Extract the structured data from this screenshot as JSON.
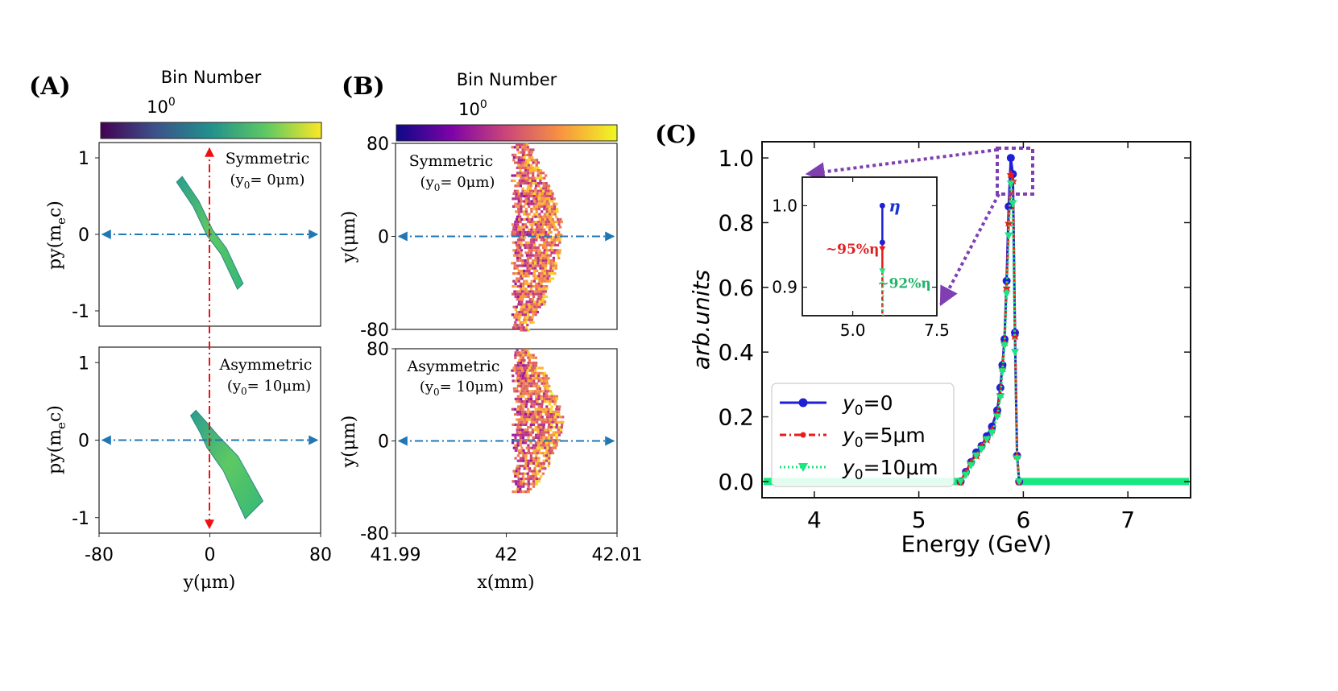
{
  "panel_labels": {
    "a": "(A)",
    "b": "(B)",
    "c": "(C)"
  },
  "colors": {
    "blue_series": "#1f1fd6",
    "red_series": "#e81c1c",
    "green_series": "#17e87f",
    "inset_annot_blue": "#1a33d9",
    "inset_annot_red": "#e02020",
    "inset_annot_green": "#22b36b",
    "zoom_box": "#7f3fb1",
    "axis_arrow_blue": "#1f77b4",
    "axis_arrow_red": "#ee1111"
  },
  "chart_data": [
    {
      "id": "A",
      "type": "heatmap",
      "colormap": "viridis",
      "colorbar": {
        "title": "Bin Number",
        "tick_base": "10",
        "tick_exp": "0"
      },
      "xlabel": "y(μm)",
      "ylabel_main": "py(m",
      "ylabel_sub": "e",
      "ylabel_end": "c)",
      "xlim": [
        -80,
        80
      ],
      "ylim": [
        -1.2,
        1.2
      ],
      "xticks": [
        "-80",
        "0",
        "80"
      ],
      "yticks": [
        "1",
        "0",
        "-1"
      ],
      "subplots": [
        {
          "name": "Symmetric",
          "label_line1": "Symmetric",
          "label_line2": "(y",
          "label_sub": "0",
          "label_end": "= 0μm)",
          "ribbon": [
            [
              -22,
              0.72
            ],
            [
              -10,
              0.4
            ],
            [
              0,
              0.02
            ],
            [
              10,
              -0.22
            ],
            [
              22,
              -0.68
            ]
          ],
          "ribbon_width": 3.5
        },
        {
          "name": "Asymmetric",
          "label_line1": "Asymmetric",
          "label_line2": "(y",
          "label_sub": "0",
          "label_end": "= 10μm)",
          "ribbon": [
            [
              -12,
              0.35
            ],
            [
              -4,
              0.15
            ],
            [
              2,
              -0.02
            ],
            [
              15,
              -0.3
            ],
            [
              32,
              -0.9
            ]
          ],
          "ribbon_width": 5.5
        }
      ]
    },
    {
      "id": "B",
      "type": "heatmap",
      "colormap": "plasma",
      "colorbar": {
        "title": "Bin Number",
        "tick_base": "10",
        "tick_exp": "0"
      },
      "xlabel": "x(mm)",
      "ylabel": "y(μm)",
      "xlim": [
        41.99,
        42.01
      ],
      "ylim": [
        -80,
        80
      ],
      "xticks": [
        "41.99",
        "42",
        "42.01"
      ],
      "yticks": [
        "80",
        "0",
        "-80"
      ],
      "subplots": [
        {
          "name": "Symmetric",
          "label_line1": "Symmetric",
          "label_line2": "(y",
          "label_sub": "0",
          "label_end": "= 0μm)",
          "cloud": {
            "x_min": 42.0004,
            "x_max": 42.0057,
            "y_min": -80,
            "y_max": 80
          }
        },
        {
          "name": "Asymmetric",
          "label_line1": "Asymmetric",
          "label_line2": "(y",
          "label_sub": "0",
          "label_end": "= 10μm)",
          "cloud": {
            "x_min": 42.0004,
            "x_max": 42.0057,
            "y_min": -45,
            "y_max": 80
          }
        }
      ]
    },
    {
      "id": "C",
      "type": "line",
      "xlabel": "Energy (GeV)",
      "ylabel": "arb.units",
      "xlim": [
        3.5,
        7.6
      ],
      "ylim": [
        -0.05,
        1.05
      ],
      "xticks": [
        "4",
        "5",
        "6",
        "7"
      ],
      "yticks": [
        "0.0",
        "0.2",
        "0.4",
        "0.6",
        "0.8",
        "1.0"
      ],
      "x": [
        5.4,
        5.45,
        5.5,
        5.55,
        5.6,
        5.65,
        5.7,
        5.75,
        5.78,
        5.8,
        5.82,
        5.84,
        5.86,
        5.88,
        5.9,
        5.92,
        5.94,
        5.96
      ],
      "series": [
        {
          "name_base": "y",
          "name_sub": "0",
          "name_end": "=0",
          "values": [
            0.0,
            0.03,
            0.06,
            0.09,
            0.11,
            0.14,
            0.17,
            0.22,
            0.29,
            0.36,
            0.44,
            0.62,
            0.85,
            1.0,
            0.95,
            0.46,
            0.08,
            0.0
          ]
        },
        {
          "name_base": "y",
          "name_sub": "0",
          "name_end": "=5μm",
          "values": [
            0.0,
            0.03,
            0.06,
            0.08,
            0.11,
            0.13,
            0.16,
            0.21,
            0.27,
            0.35,
            0.43,
            0.6,
            0.8,
            0.95,
            0.93,
            0.45,
            0.08,
            0.0
          ]
        },
        {
          "name_base": "y",
          "name_sub": "0",
          "name_end": "=10μm",
          "values": [
            0.0,
            0.02,
            0.05,
            0.08,
            0.1,
            0.13,
            0.15,
            0.2,
            0.26,
            0.34,
            0.42,
            0.58,
            0.76,
            0.92,
            0.86,
            0.4,
            0.07,
            0.0
          ]
        }
      ],
      "inset": {
        "xlim": [
          3.5,
          7.5
        ],
        "ylim": [
          0.865,
          1.035
        ],
        "xticks": [
          "5.0",
          "7.5"
        ],
        "yticks": [
          "1.0",
          "0.9"
        ],
        "point_x": 5.88,
        "levels": [
          1.0,
          0.955,
          0.92
        ],
        "annotations": {
          "eta": "η",
          "red": "~95%η",
          "green": "~92%η"
        }
      },
      "legend_placement": "lower-left"
    }
  ]
}
